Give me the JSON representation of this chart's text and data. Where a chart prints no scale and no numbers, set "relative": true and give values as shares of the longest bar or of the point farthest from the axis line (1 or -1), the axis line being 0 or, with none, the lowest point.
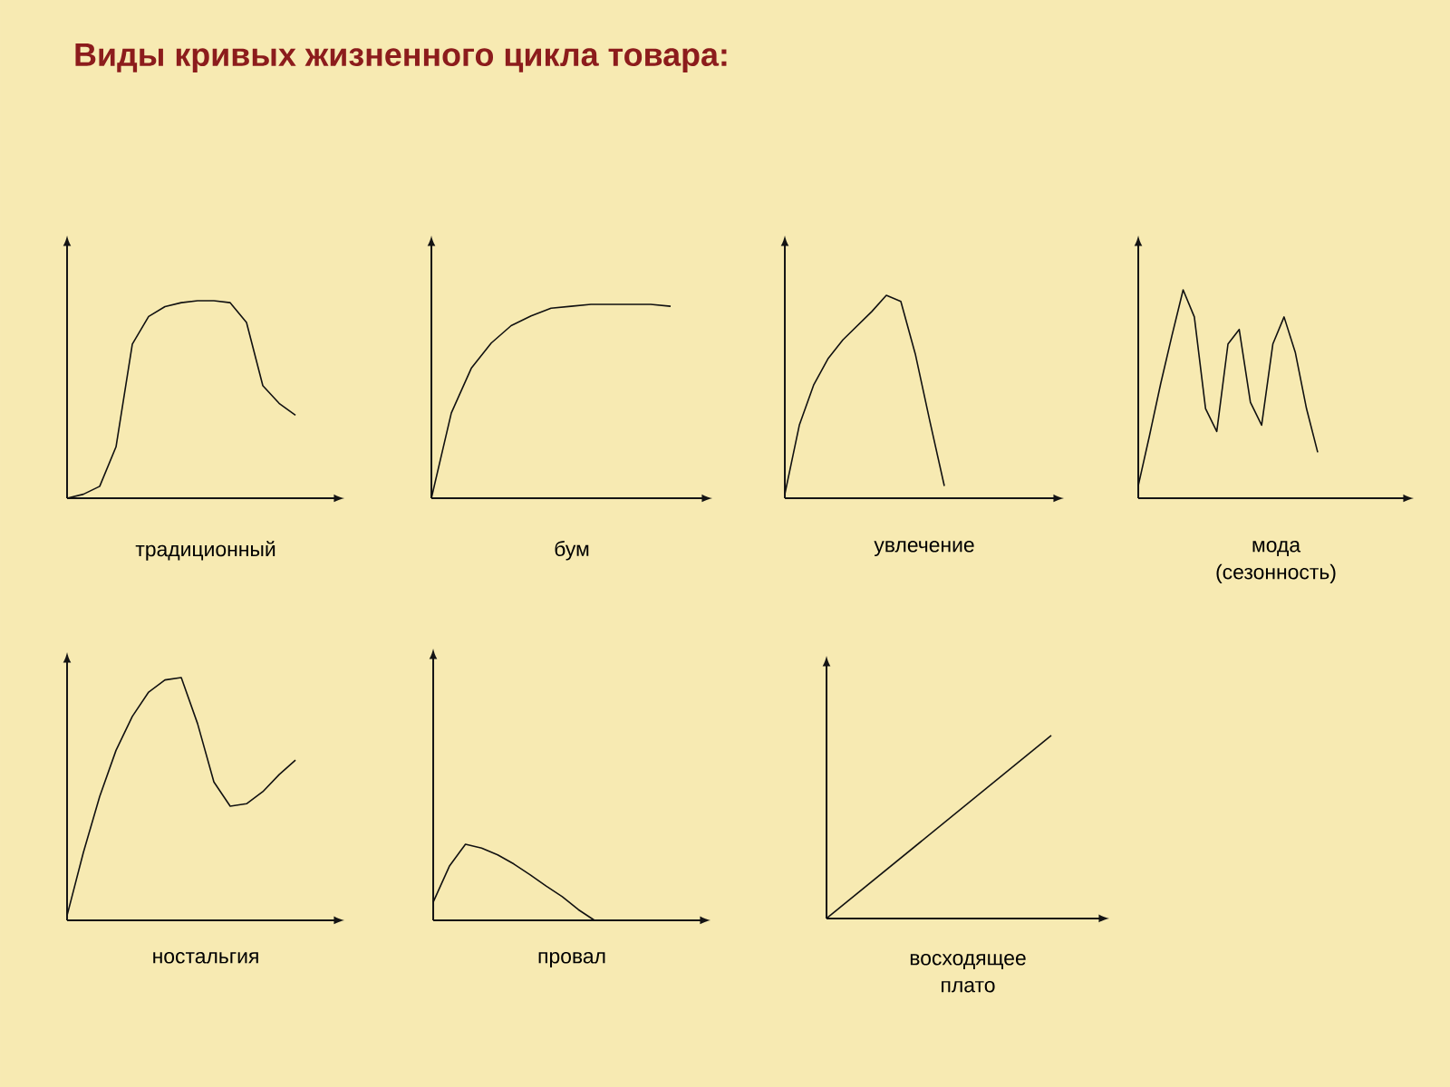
{
  "chart_data": [
    {
      "type": "line",
      "relative": true,
      "title": "Виды кривых жизненного цикла товара:",
      "xlabel": "традиционный",
      "color": "#111111",
      "categories": [
        null,
        null,
        null,
        null,
        null,
        null,
        null,
        null,
        null,
        null,
        null,
        null,
        null,
        null,
        null
      ],
      "values": [
        0.0,
        0.02,
        0.06,
        0.26,
        0.78,
        0.92,
        0.97,
        0.99,
        1,
        1,
        0.99,
        0.89,
        0.57,
        0.48,
        0.42
      ]
    },
    {
      "type": "line",
      "relative": true,
      "xlabel": "бум",
      "color": "#111111",
      "categories": [
        null,
        null,
        null,
        null,
        null,
        null,
        null,
        null,
        null,
        null,
        null,
        null,
        null
      ],
      "values": [
        0.0,
        0.44,
        0.67,
        0.8,
        0.89,
        0.94,
        0.98,
        0.99,
        1,
        1,
        1,
        1,
        0.99
      ]
    },
    {
      "type": "line",
      "relative": true,
      "xlabel": "увлечение",
      "color": "#111111",
      "categories": [
        null,
        null,
        null,
        null,
        null,
        null,
        null,
        null,
        null,
        null,
        null,
        null
      ],
      "values": [
        0.02,
        0.36,
        0.56,
        0.69,
        0.78,
        0.85,
        0.92,
        1,
        0.97,
        0.71,
        0.38,
        0.06
      ]
    },
    {
      "type": "line",
      "relative": true,
      "xlabel": "мода (сезонность)",
      "color": "#111111",
      "categories": [
        null,
        null,
        null,
        null,
        null,
        null,
        null,
        null,
        null,
        null,
        null,
        null,
        null,
        null,
        null,
        null,
        null
      ],
      "values": [
        0.06,
        0.3,
        0.55,
        0.78,
        1,
        0.87,
        0.43,
        0.32,
        0.74,
        0.81,
        0.46,
        0.35,
        0.74,
        0.87,
        0.7,
        0.43,
        0.22
      ]
    },
    {
      "type": "line",
      "relative": true,
      "xlabel": "ностальгия",
      "color": "#111111",
      "categories": [
        null,
        null,
        null,
        null,
        null,
        null,
        null,
        null,
        null,
        null,
        null,
        null,
        null,
        null,
        null
      ],
      "values": [
        0.02,
        0.28,
        0.51,
        0.7,
        0.84,
        0.94,
        0.99,
        1,
        0.81,
        0.57,
        0.47,
        0.48,
        0.53,
        0.6,
        0.66
      ]
    },
    {
      "type": "line",
      "relative": true,
      "xlabel": "провал",
      "color": "#111111",
      "categories": [
        null,
        null,
        null,
        null,
        null,
        null,
        null,
        null,
        null,
        null,
        null
      ],
      "values": [
        0.24,
        0.71,
        1,
        0.95,
        0.86,
        0.74,
        0.6,
        0.45,
        0.31,
        0.14,
        0.0
      ]
    },
    {
      "type": "line",
      "relative": true,
      "xlabel": "восходящее плато",
      "color": "#111111",
      "categories": [
        null,
        null
      ],
      "values": [
        0.0,
        1
      ]
    }
  ]
}
